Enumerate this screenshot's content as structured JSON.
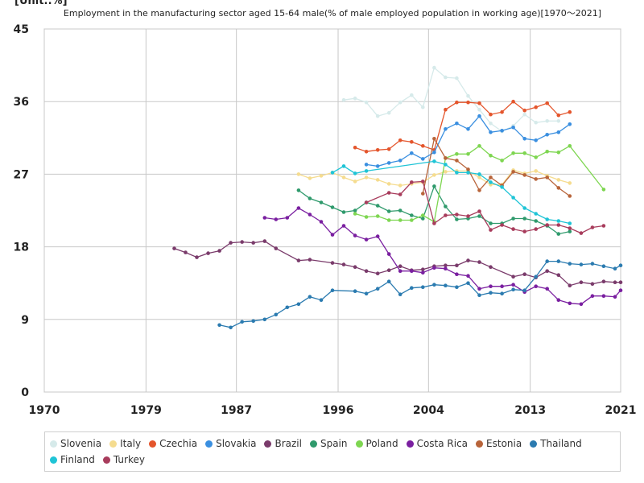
{
  "unit_label": "[Unit:.%]",
  "title": "Employment in the manufacturing sector aged 15-64 male(% of male employed population in working age)[1970～2021]",
  "chart_data": {
    "type": "line",
    "xlim": [
      1970,
      2021
    ],
    "ylim": [
      0,
      45
    ],
    "xticks": [
      1970,
      1979,
      1987,
      1996,
      2004,
      2013,
      2021
    ],
    "yticks": [
      0,
      9,
      18,
      27,
      36,
      45
    ],
    "grid": true,
    "legend_position": "bottom",
    "series": [
      {
        "name": "Slovenia",
        "color": "#d6eaea",
        "points": [
          [
            1996.5,
            36.2
          ],
          [
            1997.5,
            36.4
          ],
          [
            1998.5,
            35.9
          ],
          [
            1999.5,
            34.2
          ],
          [
            2000.5,
            34.6
          ],
          [
            2001.5,
            35.9
          ],
          [
            2002.5,
            36.8
          ],
          [
            2003.5,
            35.3
          ],
          [
            2004.5,
            40.2
          ],
          [
            2005.5,
            39.0
          ],
          [
            2006.5,
            38.9
          ],
          [
            2007.5,
            36.7
          ],
          [
            2008.5,
            35.0
          ],
          [
            2009.5,
            33.3
          ],
          [
            2010.5,
            32.3
          ],
          [
            2011.5,
            33.0
          ],
          [
            2012.5,
            34.4
          ],
          [
            2013.5,
            33.4
          ],
          [
            2014.5,
            33.6
          ],
          [
            2015.5,
            33.6
          ]
        ]
      },
      {
        "name": "Italy",
        "color": "#f5dc8f",
        "points": [
          [
            1992.5,
            27.0
          ],
          [
            1993.5,
            26.5
          ],
          [
            1994.5,
            26.8
          ],
          [
            1995.5,
            27.2
          ],
          [
            1996.5,
            26.6
          ],
          [
            1997.5,
            26.1
          ],
          [
            1998.5,
            26.6
          ],
          [
            1999.5,
            26.3
          ],
          [
            2000.5,
            25.8
          ],
          [
            2001.5,
            25.6
          ],
          [
            2002.5,
            25.8
          ],
          [
            2003.5,
            26.0
          ],
          [
            2004.5,
            26.9
          ],
          [
            2005.5,
            27.3
          ],
          [
            2006.5,
            27.4
          ],
          [
            2007.5,
            27.4
          ],
          [
            2008.5,
            26.6
          ],
          [
            2009.5,
            25.7
          ],
          [
            2010.5,
            25.7
          ],
          [
            2011.5,
            27.5
          ],
          [
            2012.5,
            27.1
          ],
          [
            2013.5,
            27.4
          ],
          [
            2014.5,
            26.8
          ],
          [
            2015.5,
            26.3
          ],
          [
            2016.5,
            25.9
          ]
        ]
      },
      {
        "name": "Czechia",
        "color": "#e4552c",
        "points": [
          [
            1997.5,
            30.3
          ],
          [
            1998.5,
            29.8
          ],
          [
            1999.5,
            30.0
          ],
          [
            2000.5,
            30.1
          ],
          [
            2001.5,
            31.2
          ],
          [
            2002.5,
            31.0
          ],
          [
            2003.5,
            30.5
          ],
          [
            2004.5,
            30.0
          ],
          [
            2005.5,
            35.0
          ],
          [
            2006.5,
            35.9
          ],
          [
            2007.5,
            35.9
          ],
          [
            2008.5,
            35.8
          ],
          [
            2009.5,
            34.4
          ],
          [
            2010.5,
            34.7
          ],
          [
            2011.5,
            36.0
          ],
          [
            2012.5,
            34.9
          ],
          [
            2013.5,
            35.3
          ],
          [
            2014.5,
            35.8
          ],
          [
            2015.5,
            34.3
          ],
          [
            2016.5,
            34.7
          ]
        ]
      },
      {
        "name": "Slovakia",
        "color": "#3a8fe0",
        "points": [
          [
            1998.5,
            28.2
          ],
          [
            1999.5,
            28.0
          ],
          [
            2000.5,
            28.4
          ],
          [
            2001.5,
            28.7
          ],
          [
            2002.5,
            29.6
          ],
          [
            2003.5,
            28.9
          ],
          [
            2004.5,
            29.7
          ],
          [
            2005.5,
            32.6
          ],
          [
            2006.5,
            33.3
          ],
          [
            2007.5,
            32.6
          ],
          [
            2008.5,
            34.2
          ],
          [
            2009.5,
            32.2
          ],
          [
            2010.5,
            32.4
          ],
          [
            2011.5,
            32.8
          ],
          [
            2012.5,
            31.4
          ],
          [
            2013.5,
            31.2
          ],
          [
            2014.5,
            31.9
          ],
          [
            2015.5,
            32.2
          ],
          [
            2016.5,
            33.2
          ]
        ]
      },
      {
        "name": "Brazil",
        "color": "#7a3b6b",
        "points": [
          [
            1981.5,
            17.8
          ],
          [
            1982.5,
            17.3
          ],
          [
            1983.5,
            16.7
          ],
          [
            1984.5,
            17.2
          ],
          [
            1985.5,
            17.5
          ],
          [
            1986.5,
            18.5
          ],
          [
            1987.5,
            18.6
          ],
          [
            1988.5,
            18.5
          ],
          [
            1989.5,
            18.7
          ],
          [
            1990.5,
            17.8
          ],
          [
            1992.5,
            16.3
          ],
          [
            1993.5,
            16.4
          ],
          [
            1995.5,
            16.0
          ],
          [
            1996.5,
            15.8
          ],
          [
            1997.5,
            15.5
          ],
          [
            1998.5,
            15.0
          ],
          [
            1999.5,
            14.7
          ],
          [
            2000.5,
            15.1
          ],
          [
            2001.5,
            15.6
          ],
          [
            2002.5,
            15.1
          ],
          [
            2003.5,
            15.2
          ],
          [
            2004.5,
            15.6
          ],
          [
            2005.5,
            15.7
          ],
          [
            2006.5,
            15.7
          ],
          [
            2007.5,
            16.3
          ],
          [
            2008.5,
            16.1
          ],
          [
            2009.5,
            15.5
          ],
          [
            2011.5,
            14.3
          ],
          [
            2012.5,
            14.6
          ],
          [
            2013.5,
            14.2
          ],
          [
            2014.5,
            15.0
          ],
          [
            2015.5,
            14.5
          ],
          [
            2016.5,
            13.2
          ],
          [
            2017.5,
            13.6
          ],
          [
            2018.5,
            13.4
          ],
          [
            2019.5,
            13.7
          ],
          [
            2020.5,
            13.6
          ],
          [
            2021,
            13.6
          ]
        ]
      },
      {
        "name": "Spain",
        "color": "#2f9a6c",
        "points": [
          [
            1992.5,
            25.0
          ],
          [
            1993.5,
            24.0
          ],
          [
            1994.5,
            23.5
          ],
          [
            1995.5,
            22.9
          ],
          [
            1996.5,
            22.3
          ],
          [
            1997.5,
            22.5
          ],
          [
            1998.5,
            23.5
          ],
          [
            1999.5,
            23.1
          ],
          [
            2000.5,
            22.4
          ],
          [
            2001.5,
            22.5
          ],
          [
            2002.5,
            21.9
          ],
          [
            2003.5,
            21.5
          ],
          [
            2004.5,
            25.5
          ],
          [
            2005.5,
            23.0
          ],
          [
            2006.5,
            21.4
          ],
          [
            2007.5,
            21.5
          ],
          [
            2008.5,
            21.8
          ],
          [
            2009.5,
            20.9
          ],
          [
            2010.5,
            20.9
          ],
          [
            2011.5,
            21.5
          ],
          [
            2012.5,
            21.5
          ],
          [
            2013.5,
            21.2
          ],
          [
            2014.5,
            20.6
          ],
          [
            2015.5,
            19.6
          ],
          [
            2016.5,
            19.9
          ]
        ]
      },
      {
        "name": "Poland",
        "color": "#7ed651",
        "points": [
          [
            1997.5,
            22.1
          ],
          [
            1998.5,
            21.7
          ],
          [
            1999.5,
            21.8
          ],
          [
            2000.5,
            21.3
          ],
          [
            2001.5,
            21.3
          ],
          [
            2002.5,
            21.3
          ],
          [
            2003.5,
            21.9
          ],
          [
            2004.5,
            21.1
          ],
          [
            2005.5,
            29.0
          ],
          [
            2006.5,
            29.5
          ],
          [
            2007.5,
            29.5
          ],
          [
            2008.5,
            30.5
          ],
          [
            2009.5,
            29.3
          ],
          [
            2010.5,
            28.7
          ],
          [
            2011.5,
            29.6
          ],
          [
            2012.5,
            29.6
          ],
          [
            2013.5,
            29.1
          ],
          [
            2014.5,
            29.8
          ],
          [
            2015.5,
            29.7
          ],
          [
            2016.5,
            30.5
          ],
          [
            2019.5,
            25.1
          ]
        ]
      },
      {
        "name": "Costa Rica",
        "color": "#7a1fa0",
        "points": [
          [
            1989.5,
            21.6
          ],
          [
            1990.5,
            21.4
          ],
          [
            1991.5,
            21.6
          ],
          [
            1992.5,
            22.8
          ],
          [
            1993.5,
            22.0
          ],
          [
            1994.5,
            21.1
          ],
          [
            1995.5,
            19.5
          ],
          [
            1996.5,
            20.6
          ],
          [
            1997.5,
            19.4
          ],
          [
            1998.5,
            18.9
          ],
          [
            1999.5,
            19.3
          ],
          [
            2000.5,
            17.1
          ],
          [
            2001.5,
            15.0
          ],
          [
            2002.5,
            15.0
          ],
          [
            2003.5,
            14.8
          ],
          [
            2004.5,
            15.4
          ],
          [
            2005.5,
            15.3
          ],
          [
            2006.5,
            14.6
          ],
          [
            2007.5,
            14.4
          ],
          [
            2008.5,
            12.8
          ],
          [
            2009.5,
            13.1
          ],
          [
            2010.5,
            13.1
          ],
          [
            2011.5,
            13.3
          ],
          [
            2012.5,
            12.4
          ],
          [
            2013.5,
            13.1
          ],
          [
            2014.5,
            12.8
          ],
          [
            2015.5,
            11.4
          ],
          [
            2016.5,
            11.0
          ],
          [
            2017.5,
            10.9
          ],
          [
            2018.5,
            11.9
          ],
          [
            2019.5,
            11.9
          ],
          [
            2020.5,
            11.8
          ],
          [
            2021,
            12.6
          ]
        ]
      },
      {
        "name": "Estonia",
        "color": "#b8643a",
        "points": [
          [
            2003.5,
            24.6
          ],
          [
            2004.5,
            31.4
          ],
          [
            2005.5,
            29.0
          ],
          [
            2006.5,
            28.7
          ],
          [
            2007.5,
            27.6
          ],
          [
            2008.5,
            25.0
          ],
          [
            2009.5,
            26.6
          ],
          [
            2010.5,
            25.6
          ],
          [
            2011.5,
            27.3
          ],
          [
            2012.5,
            26.9
          ],
          [
            2013.5,
            26.4
          ],
          [
            2014.5,
            26.6
          ],
          [
            2015.5,
            25.3
          ],
          [
            2016.5,
            24.3
          ]
        ]
      },
      {
        "name": "Thailand",
        "color": "#2b7bb0",
        "points": [
          [
            1985.5,
            8.3
          ],
          [
            1986.5,
            8.0
          ],
          [
            1987.5,
            8.7
          ],
          [
            1988.5,
            8.8
          ],
          [
            1989.5,
            9.0
          ],
          [
            1990.5,
            9.6
          ],
          [
            1991.5,
            10.5
          ],
          [
            1992.5,
            10.9
          ],
          [
            1993.5,
            11.8
          ],
          [
            1994.5,
            11.4
          ],
          [
            1995.5,
            12.6
          ],
          [
            1997.5,
            12.5
          ],
          [
            1998.5,
            12.2
          ],
          [
            1999.5,
            12.8
          ],
          [
            2000.5,
            13.7
          ],
          [
            2001.5,
            12.1
          ],
          [
            2002.5,
            12.9
          ],
          [
            2003.5,
            13.0
          ],
          [
            2004.5,
            13.3
          ],
          [
            2005.5,
            13.2
          ],
          [
            2006.5,
            13.0
          ],
          [
            2007.5,
            13.5
          ],
          [
            2008.5,
            12.0
          ],
          [
            2009.5,
            12.3
          ],
          [
            2010.5,
            12.2
          ],
          [
            2011.5,
            12.7
          ],
          [
            2012.5,
            12.6
          ],
          [
            2013.5,
            14.3
          ],
          [
            2014.5,
            16.2
          ],
          [
            2015.5,
            16.2
          ],
          [
            2016.5,
            15.9
          ],
          [
            2017.5,
            15.8
          ],
          [
            2018.5,
            15.9
          ],
          [
            2019.5,
            15.6
          ],
          [
            2020.5,
            15.3
          ],
          [
            2021,
            15.7
          ]
        ]
      },
      {
        "name": "Finland",
        "color": "#1fc4d6",
        "points": [
          [
            1995.5,
            27.2
          ],
          [
            1996.5,
            28.0
          ],
          [
            1997.5,
            27.1
          ],
          [
            1998.5,
            27.4
          ],
          [
            2004.5,
            28.6
          ],
          [
            2005.5,
            28.2
          ],
          [
            2006.5,
            27.2
          ],
          [
            2007.5,
            27.2
          ],
          [
            2008.5,
            27.0
          ],
          [
            2009.5,
            26.0
          ],
          [
            2010.5,
            25.4
          ],
          [
            2011.5,
            24.1
          ],
          [
            2012.5,
            22.8
          ],
          [
            2013.5,
            22.1
          ],
          [
            2014.5,
            21.4
          ],
          [
            2015.5,
            21.2
          ],
          [
            2016.5,
            20.9
          ]
        ]
      },
      {
        "name": "Turkey",
        "color": "#a83c5c",
        "points": [
          [
            1998.5,
            23.5
          ],
          [
            2000.5,
            24.7
          ],
          [
            2001.5,
            24.5
          ],
          [
            2002.5,
            26.0
          ],
          [
            2003.5,
            26.1
          ],
          [
            2004.5,
            20.9
          ],
          [
            2005.5,
            21.9
          ],
          [
            2006.5,
            22.0
          ],
          [
            2007.5,
            21.8
          ],
          [
            2008.5,
            22.4
          ],
          [
            2009.5,
            20.1
          ],
          [
            2010.5,
            20.7
          ],
          [
            2011.5,
            20.2
          ],
          [
            2012.5,
            19.9
          ],
          [
            2013.5,
            20.2
          ],
          [
            2014.5,
            20.7
          ],
          [
            2015.5,
            20.7
          ],
          [
            2016.5,
            20.3
          ],
          [
            2017.5,
            19.7
          ],
          [
            2018.5,
            20.4
          ],
          [
            2019.5,
            20.6
          ]
        ]
      }
    ]
  }
}
